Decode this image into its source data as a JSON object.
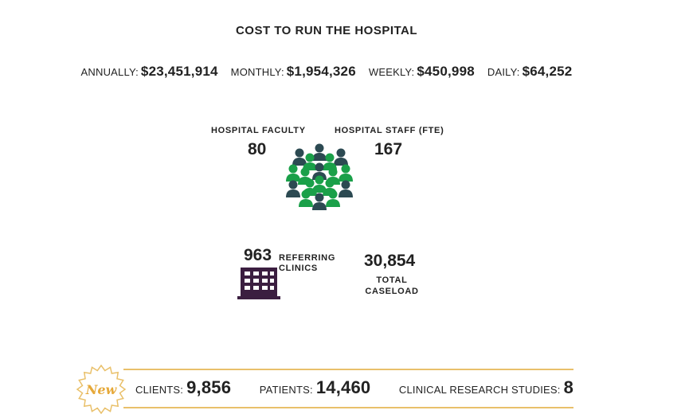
{
  "title": "COST TO RUN THE HOSPITAL",
  "costs": [
    {
      "label": "ANNUALLY:",
      "value": "$23,451,914"
    },
    {
      "label": "MONTHLY:",
      "value": "$1,954,326"
    },
    {
      "label": "WEEKLY:",
      "value": "$450,998"
    },
    {
      "label": "DAILY:",
      "value": "$64,252"
    }
  ],
  "faculty": {
    "label": "HOSPITAL FACULTY",
    "value": "80"
  },
  "staff": {
    "label": "HOSPITAL STAFF (FTE)",
    "value": "167"
  },
  "clinics": {
    "value": "963",
    "label_line1": "REFERRING",
    "label_line2": "CLINICS"
  },
  "caseload": {
    "value": "30,854",
    "label_line1": "TOTAL",
    "label_line2": "CASELOAD"
  },
  "badge": {
    "text": "New"
  },
  "bottom": [
    {
      "label": "CLIENTS:",
      "value": "9,856"
    },
    {
      "label": "PATIENTS:",
      "value": "14,460"
    },
    {
      "label": "CLINICAL RESEARCH STUDIES:",
      "value": "8"
    }
  ],
  "colors": {
    "green": "#1aa049",
    "slate": "#2c4a52",
    "purple": "#3b1e40",
    "gold": "#e9c06a",
    "badge_text": "#e6a93a"
  },
  "icons": {
    "people": "people-group-icon",
    "building": "building-icon",
    "badge": "starburst-badge-icon"
  }
}
